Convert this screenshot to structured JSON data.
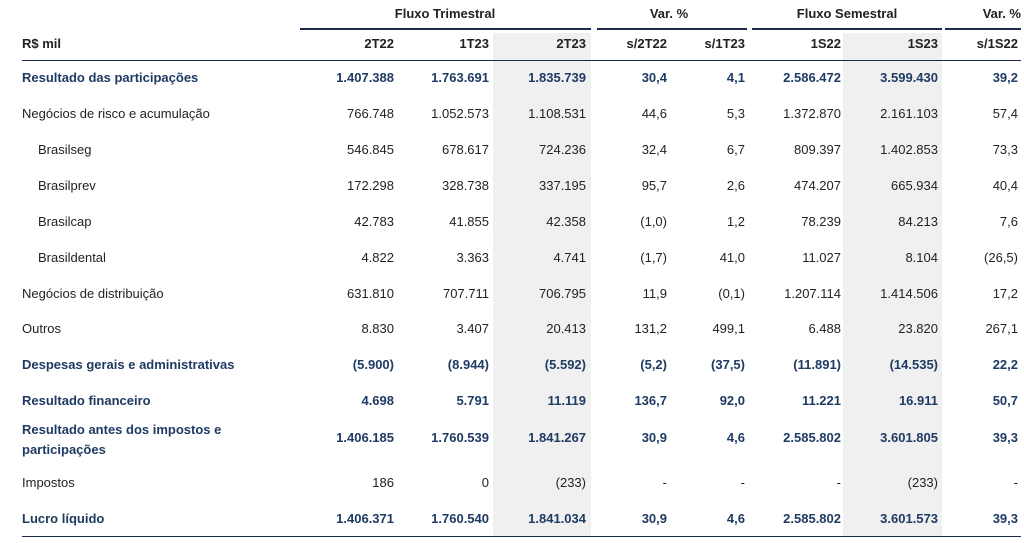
{
  "groups": {
    "fluxo_trimestral": "Fluxo Trimestral",
    "var_trim": "Var. %",
    "fluxo_semestral": "Fluxo Semestral",
    "var_sem": "Var. %"
  },
  "columns": [
    "R$ mil",
    "2T22",
    "1T23",
    "2T23",
    "s/2T22",
    "s/1T23",
    "1S22",
    "1S23",
    "s/1S22"
  ],
  "rows": [
    {
      "label": "Resultado das participações",
      "values": [
        "1.407.388",
        "1.763.691",
        "1.835.739",
        "30,4",
        "4,1",
        "2.586.472",
        "3.599.430",
        "39,2"
      ]
    },
    {
      "label": "Negócios de risco e acumulação",
      "values": [
        "766.748",
        "1.052.573",
        "1.108.531",
        "44,6",
        "5,3",
        "1.372.870",
        "2.161.103",
        "57,4"
      ]
    },
    {
      "label": "Brasilseg",
      "values": [
        "546.845",
        "678.617",
        "724.236",
        "32,4",
        "6,7",
        "809.397",
        "1.402.853",
        "73,3"
      ]
    },
    {
      "label": "Brasilprev",
      "values": [
        "172.298",
        "328.738",
        "337.195",
        "95,7",
        "2,6",
        "474.207",
        "665.934",
        "40,4"
      ]
    },
    {
      "label": "Brasilcap",
      "values": [
        "42.783",
        "41.855",
        "42.358",
        "(1,0)",
        "1,2",
        "78.239",
        "84.213",
        "7,6"
      ]
    },
    {
      "label": "Brasildental",
      "values": [
        "4.822",
        "3.363",
        "4.741",
        "(1,7)",
        "41,0",
        "11.027",
        "8.104",
        "(26,5)"
      ]
    },
    {
      "label": "Negócios de distribuição",
      "values": [
        "631.810",
        "707.711",
        "706.795",
        "11,9",
        "(0,1)",
        "1.207.114",
        "1.414.506",
        "17,2"
      ]
    },
    {
      "label": "Outros",
      "values": [
        "8.830",
        "3.407",
        "20.413",
        "131,2",
        "499,1",
        "6.488",
        "23.820",
        "267,1"
      ]
    },
    {
      "label": "Despesas gerais e administrativas",
      "values": [
        "(5.900)",
        "(8.944)",
        "(5.592)",
        "(5,2)",
        "(37,5)",
        "(11.891)",
        "(14.535)",
        "22,2"
      ]
    },
    {
      "label": "Resultado financeiro",
      "values": [
        "4.698",
        "5.791",
        "11.119",
        "136,7",
        "92,0",
        "11.221",
        "16.911",
        "50,7"
      ]
    },
    {
      "label": "Resultado antes dos impostos e participações",
      "values": [
        "1.406.185",
        "1.760.539",
        "1.841.267",
        "30,9",
        "4,6",
        "2.585.802",
        "3.601.805",
        "39,3"
      ]
    },
    {
      "label": "Impostos",
      "values": [
        "186",
        "0",
        "(233)",
        "-",
        "-",
        "-",
        "(233)",
        "-"
      ]
    },
    {
      "label": "Lucro líquido",
      "values": [
        "1.406.371",
        "1.760.540",
        "1.841.034",
        "30,9",
        "4,6",
        "2.585.802",
        "3.601.573",
        "39,3"
      ]
    }
  ]
}
